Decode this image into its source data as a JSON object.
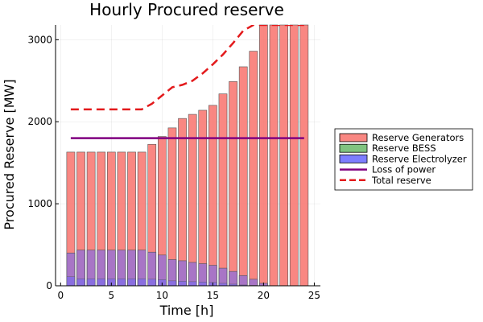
{
  "chart_data": {
    "type": "bar",
    "title": "Hourly Procured reserve",
    "xlabel": "Time [h]",
    "ylabel": "Procured Reserve [MW]",
    "xlim": [
      -0.5,
      25.6
    ],
    "ylim": [
      0,
      3180
    ],
    "xticks": [
      0,
      5,
      10,
      15,
      20,
      25
    ],
    "yticks": [
      0,
      1000,
      2000,
      3000
    ],
    "grid": true,
    "legend_position": "outside-right",
    "x": [
      1,
      2,
      3,
      4,
      5,
      6,
      7,
      8,
      9,
      10,
      11,
      12,
      13,
      14,
      15,
      16,
      17,
      18,
      19,
      20,
      21,
      22,
      23,
      24
    ],
    "series": [
      {
        "name": "Reserve Generators",
        "kind": "bar",
        "color": "#f8726c",
        "values": [
          1630,
          1630,
          1630,
          1630,
          1630,
          1630,
          1630,
          1630,
          1725,
          1820,
          1925,
          2040,
          2090,
          2140,
          2200,
          2340,
          2490,
          2670,
          2860,
          3180,
          3180,
          3180,
          3180,
          3180
        ]
      },
      {
        "name": "Reserve BESS",
        "kind": "bar",
        "color": "#6ab86a",
        "values": [
          0,
          0,
          0,
          0,
          0,
          0,
          0,
          0,
          0,
          0,
          0,
          0,
          0,
          0,
          0,
          0,
          0,
          0,
          0,
          0,
          0,
          0,
          0,
          0
        ]
      },
      {
        "name": "Reserve Electrolyzer",
        "kind": "bar",
        "color": "#6666ff",
        "values": [
          400,
          435,
          435,
          435,
          435,
          435,
          435,
          435,
          410,
          375,
          320,
          305,
          285,
          270,
          250,
          215,
          175,
          125,
          80,
          30,
          0,
          0,
          0,
          0
        ]
      },
      {
        "name": "Loss of power",
        "kind": "line",
        "color": "#800080",
        "values": [
          1800,
          1800,
          1800,
          1800,
          1800,
          1800,
          1800,
          1800,
          1800,
          1800,
          1800,
          1800,
          1800,
          1800,
          1800,
          1800,
          1800,
          1800,
          1800,
          1800,
          1800,
          1800,
          1800,
          1800
        ]
      },
      {
        "name": "Total reserve",
        "kind": "line",
        "dashed": true,
        "color": "#e31a1c",
        "values": [
          2150,
          2150,
          2150,
          2150,
          2150,
          2150,
          2150,
          2150,
          2220,
          2320,
          2420,
          2450,
          2500,
          2590,
          2700,
          2820,
          2960,
          3110,
          3180,
          3180,
          3180,
          3180,
          3180,
          3180
        ]
      }
    ],
    "electrolyzer_inner_values": [
      110,
      85,
      85,
      85,
      85,
      85,
      85,
      85,
      80,
      75,
      60,
      55,
      50,
      45,
      40,
      30,
      20,
      10,
      5,
      0,
      0,
      0,
      0,
      0
    ]
  }
}
